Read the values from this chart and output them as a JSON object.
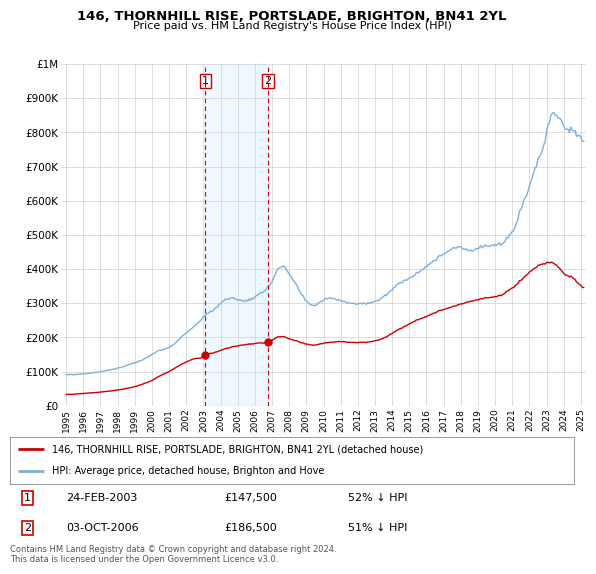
{
  "title": "146, THORNHILL RISE, PORTSLADE, BRIGHTON, BN41 2YL",
  "subtitle": "Price paid vs. HM Land Registry's House Price Index (HPI)",
  "legend_label_red": "146, THORNHILL RISE, PORTSLADE, BRIGHTON, BN41 2YL (detached house)",
  "legend_label_blue": "HPI: Average price, detached house, Brighton and Hove",
  "transaction1_date": "24-FEB-2003",
  "transaction1_price": "£147,500",
  "transaction1_hpi": "52% ↓ HPI",
  "transaction2_date": "03-OCT-2006",
  "transaction2_price": "£186,500",
  "transaction2_hpi": "51% ↓ HPI",
  "footer": "Contains HM Land Registry data © Crown copyright and database right 2024.\nThis data is licensed under the Open Government Licence v3.0.",
  "transaction1_year": 2003.12,
  "transaction2_year": 2006.75,
  "red_color": "#cc0000",
  "blue_color": "#80b0d8",
  "shade_color": "#ddeeff",
  "background_color": "#ffffff",
  "xlim_start": 1994.7,
  "xlim_end": 2025.3
}
